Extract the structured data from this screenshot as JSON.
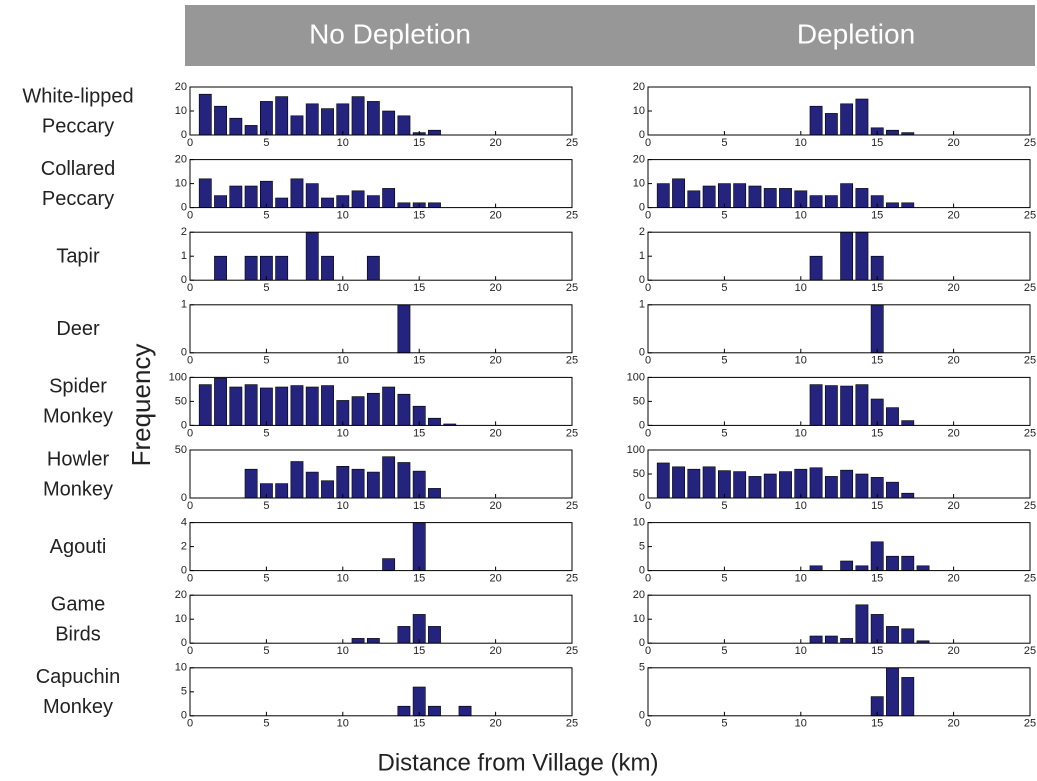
{
  "column_titles": [
    "No Depletion",
    "Depletion"
  ],
  "row_labels": [
    [
      "White-lipped",
      "Peccary"
    ],
    [
      "Collared",
      "Peccary"
    ],
    [
      "Tapir"
    ],
    [
      "Deer"
    ],
    [
      "Spider",
      "Monkey"
    ],
    [
      "Howler",
      "Monkey"
    ],
    [
      "Agouti"
    ],
    [
      "Game",
      "Birds"
    ],
    [
      "Capuchin",
      "Monkey"
    ]
  ],
  "ylabel": "Frequency",
  "xlabel": "Distance from Village (km)",
  "chart_data": [
    {
      "type": "bar",
      "color": "#24247e",
      "xlim": [
        0,
        25
      ],
      "xticks": [
        0,
        5,
        10,
        15,
        20,
        25
      ],
      "ylim": [
        0,
        20
      ],
      "yticks": [
        0,
        10,
        20
      ],
      "x": [
        1,
        2,
        3,
        4,
        5,
        6,
        7,
        8,
        9,
        10,
        11,
        12,
        13,
        14,
        15,
        16
      ],
      "values": [
        17,
        12,
        7,
        4,
        14,
        16,
        8,
        13,
        11,
        13,
        16,
        14,
        10,
        8,
        1,
        2
      ]
    },
    {
      "type": "bar",
      "color": "#24247e",
      "xlim": [
        0,
        25
      ],
      "xticks": [
        0,
        5,
        10,
        15,
        20,
        25
      ],
      "ylim": [
        0,
        20
      ],
      "yticks": [
        0,
        10,
        20
      ],
      "x": [
        11,
        12,
        13,
        14,
        15,
        16,
        17
      ],
      "values": [
        12,
        9,
        13,
        15,
        3,
        2,
        1
      ]
    },
    {
      "type": "bar",
      "color": "#24247e",
      "xlim": [
        0,
        25
      ],
      "xticks": [
        0,
        5,
        10,
        15,
        20,
        25
      ],
      "ylim": [
        0,
        20
      ],
      "yticks": [
        0,
        10,
        20
      ],
      "x": [
        1,
        2,
        3,
        4,
        5,
        6,
        7,
        8,
        9,
        10,
        11,
        12,
        13,
        14,
        15,
        16
      ],
      "values": [
        12,
        5,
        9,
        9,
        11,
        4,
        12,
        10,
        4,
        5,
        7,
        5,
        8,
        2,
        2,
        2
      ]
    },
    {
      "type": "bar",
      "color": "#24247e",
      "xlim": [
        0,
        25
      ],
      "xticks": [
        0,
        5,
        10,
        15,
        20,
        25
      ],
      "ylim": [
        0,
        20
      ],
      "yticks": [
        0,
        10,
        20
      ],
      "x": [
        1,
        2,
        3,
        4,
        5,
        6,
        7,
        8,
        9,
        10,
        11,
        12,
        13,
        14,
        15,
        16,
        17
      ],
      "values": [
        10,
        12,
        7,
        9,
        10,
        10,
        9,
        8,
        8,
        7,
        5,
        5,
        10,
        8,
        5,
        2,
        2
      ]
    },
    {
      "type": "bar",
      "color": "#24247e",
      "xlim": [
        0,
        25
      ],
      "xticks": [
        0,
        5,
        10,
        15,
        20,
        25
      ],
      "ylim": [
        0,
        2
      ],
      "yticks": [
        0,
        1,
        2
      ],
      "x": [
        2,
        4,
        5,
        6,
        8,
        9,
        12
      ],
      "values": [
        1,
        1,
        1,
        1,
        2,
        1,
        1
      ]
    },
    {
      "type": "bar",
      "color": "#24247e",
      "xlim": [
        0,
        25
      ],
      "xticks": [
        0,
        5,
        10,
        15,
        20,
        25
      ],
      "ylim": [
        0,
        2
      ],
      "yticks": [
        0,
        1,
        2
      ],
      "x": [
        11,
        13,
        14,
        15
      ],
      "values": [
        1,
        2,
        2,
        1
      ]
    },
    {
      "type": "bar",
      "color": "#24247e",
      "xlim": [
        0,
        25
      ],
      "xticks": [
        0,
        5,
        10,
        15,
        20,
        25
      ],
      "ylim": [
        0,
        1
      ],
      "yticks": [
        0,
        1
      ],
      "x": [
        14
      ],
      "values": [
        1
      ]
    },
    {
      "type": "bar",
      "color": "#24247e",
      "xlim": [
        0,
        25
      ],
      "xticks": [
        0,
        5,
        10,
        15,
        20,
        25
      ],
      "ylim": [
        0,
        1
      ],
      "yticks": [
        0,
        1
      ],
      "x": [
        15
      ],
      "values": [
        1
      ]
    },
    {
      "type": "bar",
      "color": "#24247e",
      "xlim": [
        0,
        25
      ],
      "xticks": [
        0,
        5,
        10,
        15,
        20,
        25
      ],
      "ylim": [
        0,
        100
      ],
      "yticks": [
        0,
        50,
        100
      ],
      "x": [
        1,
        2,
        3,
        4,
        5,
        6,
        7,
        8,
        9,
        10,
        11,
        12,
        13,
        14,
        15,
        16,
        17
      ],
      "values": [
        85,
        98,
        80,
        85,
        78,
        80,
        83,
        80,
        83,
        52,
        60,
        67,
        80,
        65,
        40,
        15,
        3
      ]
    },
    {
      "type": "bar",
      "color": "#24247e",
      "xlim": [
        0,
        25
      ],
      "xticks": [
        0,
        5,
        10,
        15,
        20,
        25
      ],
      "ylim": [
        0,
        100
      ],
      "yticks": [
        0,
        50,
        100
      ],
      "x": [
        11,
        12,
        13,
        14,
        15,
        16,
        17
      ],
      "values": [
        85,
        83,
        82,
        85,
        55,
        37,
        10
      ]
    },
    {
      "type": "bar",
      "color": "#24247e",
      "xlim": [
        0,
        25
      ],
      "xticks": [
        0,
        5,
        10,
        15,
        20,
        25
      ],
      "ylim": [
        0,
        50
      ],
      "yticks": [
        0,
        50
      ],
      "x": [
        4,
        5,
        6,
        7,
        8,
        9,
        10,
        11,
        12,
        13,
        14,
        15,
        16
      ],
      "values": [
        30,
        15,
        15,
        38,
        27,
        18,
        33,
        30,
        27,
        43,
        37,
        28,
        10
      ]
    },
    {
      "type": "bar",
      "color": "#24247e",
      "xlim": [
        0,
        25
      ],
      "xticks": [
        0,
        5,
        10,
        15,
        20,
        25
      ],
      "ylim": [
        0,
        100
      ],
      "yticks": [
        0,
        50,
        100
      ],
      "x": [
        1,
        2,
        3,
        4,
        5,
        6,
        7,
        8,
        9,
        10,
        11,
        12,
        13,
        14,
        15,
        16,
        17
      ],
      "values": [
        73,
        65,
        60,
        65,
        57,
        55,
        45,
        50,
        55,
        60,
        63,
        45,
        58,
        50,
        43,
        33,
        10
      ]
    },
    {
      "type": "bar",
      "color": "#24247e",
      "xlim": [
        0,
        25
      ],
      "xticks": [
        0,
        5,
        10,
        15,
        20,
        25
      ],
      "ylim": [
        0,
        4
      ],
      "yticks": [
        0,
        2,
        4
      ],
      "x": [
        13,
        15
      ],
      "values": [
        1,
        4
      ]
    },
    {
      "type": "bar",
      "color": "#24247e",
      "xlim": [
        0,
        25
      ],
      "xticks": [
        0,
        5,
        10,
        15,
        20,
        25
      ],
      "ylim": [
        0,
        10
      ],
      "yticks": [
        0,
        5,
        10
      ],
      "x": [
        11,
        13,
        14,
        15,
        16,
        17,
        18
      ],
      "values": [
        1,
        2,
        1,
        6,
        3,
        3,
        1
      ]
    },
    {
      "type": "bar",
      "color": "#24247e",
      "xlim": [
        0,
        25
      ],
      "xticks": [
        0,
        5,
        10,
        15,
        20,
        25
      ],
      "ylim": [
        0,
        20
      ],
      "yticks": [
        0,
        10,
        20
      ],
      "x": [
        11,
        12,
        14,
        15,
        16
      ],
      "values": [
        2,
        2,
        7,
        12,
        7
      ]
    },
    {
      "type": "bar",
      "color": "#24247e",
      "xlim": [
        0,
        25
      ],
      "xticks": [
        0,
        5,
        10,
        15,
        20,
        25
      ],
      "ylim": [
        0,
        20
      ],
      "yticks": [
        0,
        10,
        20
      ],
      "x": [
        11,
        12,
        13,
        14,
        15,
        16,
        17,
        18
      ],
      "values": [
        3,
        3,
        2,
        16,
        12,
        7,
        6,
        1
      ]
    },
    {
      "type": "bar",
      "color": "#24247e",
      "xlim": [
        0,
        25
      ],
      "xticks": [
        0,
        5,
        10,
        15,
        20,
        25
      ],
      "ylim": [
        0,
        10
      ],
      "yticks": [
        0,
        5,
        10
      ],
      "x": [
        14,
        15,
        16,
        18
      ],
      "values": [
        2,
        6,
        2,
        2
      ]
    },
    {
      "type": "bar",
      "color": "#24247e",
      "xlim": [
        0,
        25
      ],
      "xticks": [
        0,
        5,
        10,
        15,
        20,
        25
      ],
      "ylim": [
        0,
        5
      ],
      "yticks": [
        0,
        5
      ],
      "x": [
        15,
        16,
        17
      ],
      "values": [
        2,
        5,
        4
      ]
    }
  ]
}
